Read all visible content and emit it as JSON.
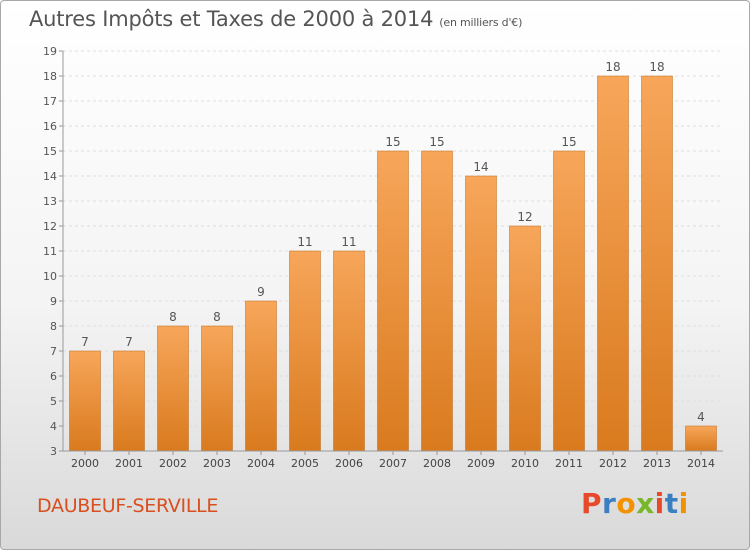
{
  "chart_data": {
    "type": "bar",
    "title": "Autres Impôts et Taxes de 2000 à 2014",
    "subtitle": "(en milliers d'€)",
    "categories": [
      "2000",
      "2001",
      "2002",
      "2003",
      "2004",
      "2005",
      "2006",
      "2007",
      "2008",
      "2009",
      "2010",
      "2011",
      "2012",
      "2013",
      "2014"
    ],
    "values": [
      7,
      7,
      8,
      8,
      9,
      11,
      11,
      15,
      15,
      14,
      12,
      15,
      18,
      18,
      4
    ],
    "ylim": [
      3,
      19
    ],
    "yticks": [
      3,
      4,
      5,
      6,
      7,
      8,
      9,
      10,
      11,
      12,
      13,
      14,
      15,
      16,
      17,
      18,
      19
    ],
    "grid": true,
    "bar_color_top": "#f7a65a",
    "bar_color_bottom": "#d97a1e"
  },
  "commune": "DAUBEUF-SERVILLE",
  "logo": [
    "P",
    "r",
    "o",
    "x",
    "i",
    "t",
    "i"
  ],
  "logo_colors": [
    "#e8492b",
    "#3c7fc1",
    "#f39200",
    "#76b82a",
    "#e8492b",
    "#3c7fc1",
    "#f39200"
  ]
}
